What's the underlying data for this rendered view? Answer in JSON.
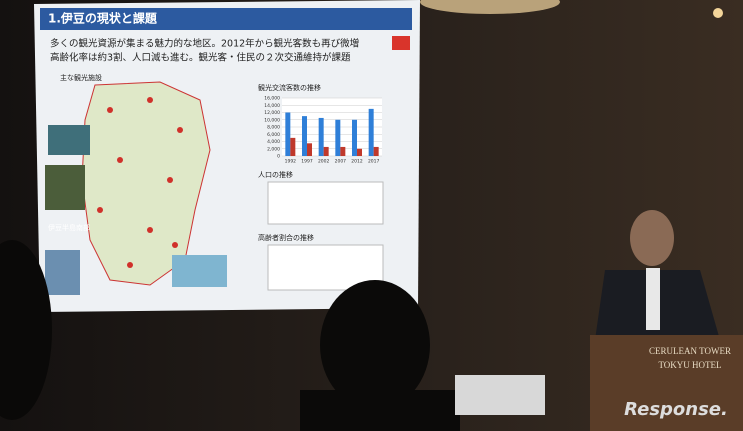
{
  "slide": {
    "title": "1.伊豆の現状と課題",
    "bullets": [
      "多くの観光資源が集まる魅力的な地区。2012年から観光客数も再び微増",
      "高齢化率は約3割、人口減も進む。観光客・住民の２次交通維持が課題"
    ],
    "map_heading": "主な観光施設",
    "map_label": "伊豆半島南部",
    "chart_titles": [
      "人口の推移",
      "高齢者割合の推移"
    ]
  },
  "chart_data": {
    "type": "bar",
    "title": "観光交流客数の推移",
    "categories": [
      "1992",
      "1997",
      "2002",
      "2007",
      "2012",
      "2017"
    ],
    "series": [
      {
        "color": "#2f7fd8",
        "values": [
          12000,
          11000,
          10500,
          10000,
          10000,
          13000
        ]
      },
      {
        "color": "#c0392b",
        "values": [
          5000,
          3500,
          2500,
          2500,
          2000,
          2500
        ]
      }
    ],
    "ylim": [
      0,
      16000
    ],
    "yticks": [
      0,
      {
        "value": 2000,
        "label": "2,000"
      },
      {
        "value": 4000,
        "label": "4,000"
      },
      {
        "value": 6000,
        "label": "6,000"
      },
      {
        "value": 8000,
        "label": "8,000"
      },
      {
        "value": 10000,
        "label": "10,000"
      },
      {
        "value": 12000,
        "label": "12,000"
      },
      {
        "value": 14000,
        "label": "14,000"
      },
      {
        "value": 16000,
        "label": "16,000"
      }
    ],
    "grid": true
  },
  "podium": {
    "line1": "CERULEAN TOWER",
    "line2": "TOKYU HOTEL"
  },
  "watermark": "Response."
}
